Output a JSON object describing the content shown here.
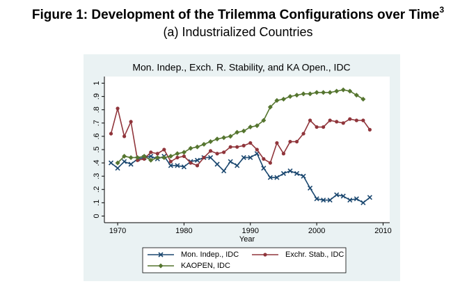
{
  "chart_data": {
    "type": "line",
    "title": "Figure 1: Development of the Trilemma Configurations over Time",
    "title_superscript": "3",
    "subtitle": "(a) Industrialized Countries",
    "plot_title": "Mon. Indep., Exch. R. Stability, and KA Open., IDC",
    "x_label": "Year",
    "x": [
      1969,
      1970,
      1971,
      1972,
      1973,
      1974,
      1975,
      1976,
      1977,
      1978,
      1979,
      1980,
      1981,
      1982,
      1983,
      1984,
      1985,
      1986,
      1987,
      1988,
      1989,
      1990,
      1991,
      1992,
      1993,
      1994,
      1995,
      1996,
      1997,
      1998,
      1999,
      2000,
      2001,
      2002,
      2003,
      2004,
      2005,
      2006,
      2007,
      2008
    ],
    "xlim": [
      1968,
      2011
    ],
    "xticks": [
      1970,
      1980,
      1990,
      2000,
      2010
    ],
    "ylim": [
      -0.05,
      1.05
    ],
    "yticks": [
      0,
      {
        "value": 0.1,
        "label": ".1"
      },
      {
        "value": 0.2,
        "label": ".2"
      },
      {
        "value": 0.3,
        "label": ".3"
      },
      {
        "value": 0.4,
        "label": ".4"
      },
      {
        "value": 0.5,
        "label": ".5"
      },
      {
        "value": 0.6,
        "label": ".6"
      },
      {
        "value": 0.7,
        "label": ".7"
      },
      {
        "value": 0.8,
        "label": ".8"
      },
      {
        "value": 0.9,
        "label": ".9"
      },
      1
    ],
    "grid": false,
    "legend_position": "bottom",
    "series": [
      {
        "name": "Mon. Indep., IDC",
        "color": "#1a476f",
        "marker": "x",
        "values": [
          0.4,
          0.36,
          0.41,
          0.39,
          0.43,
          0.44,
          0.45,
          0.43,
          0.45,
          0.38,
          0.38,
          0.37,
          0.41,
          0.42,
          0.44,
          0.44,
          0.39,
          0.34,
          0.41,
          0.38,
          0.44,
          0.44,
          0.47,
          0.36,
          0.29,
          0.29,
          0.32,
          0.34,
          0.32,
          0.3,
          0.21,
          0.13,
          0.12,
          0.12,
          0.16,
          0.15,
          0.12,
          0.13,
          0.1,
          0.14
        ]
      },
      {
        "name": "Exchr. Stab., IDC",
        "color": "#90353b",
        "marker": "circle",
        "values": [
          0.62,
          0.81,
          0.6,
          0.71,
          0.42,
          0.43,
          0.48,
          0.47,
          0.5,
          0.41,
          0.44,
          0.45,
          0.4,
          0.38,
          0.44,
          0.49,
          0.47,
          0.48,
          0.52,
          0.52,
          0.53,
          0.55,
          0.5,
          0.43,
          0.4,
          0.55,
          0.47,
          0.56,
          0.56,
          0.62,
          0.72,
          0.67,
          0.67,
          0.72,
          0.71,
          0.7,
          0.73,
          0.72,
          0.72,
          0.65
        ]
      },
      {
        "name": "KAOPEN, IDC",
        "color": "#55752f",
        "marker": "diamond",
        "values": [
          null,
          0.4,
          0.45,
          0.44,
          0.44,
          0.45,
          0.42,
          0.44,
          0.44,
          0.45,
          0.47,
          0.48,
          0.51,
          0.52,
          0.54,
          0.56,
          0.58,
          0.59,
          0.6,
          0.63,
          0.64,
          0.67,
          0.68,
          0.72,
          0.82,
          0.87,
          0.88,
          0.9,
          0.91,
          0.92,
          0.92,
          0.93,
          0.93,
          0.93,
          0.94,
          0.95,
          0.94,
          0.91,
          0.88,
          null
        ]
      }
    ]
  }
}
